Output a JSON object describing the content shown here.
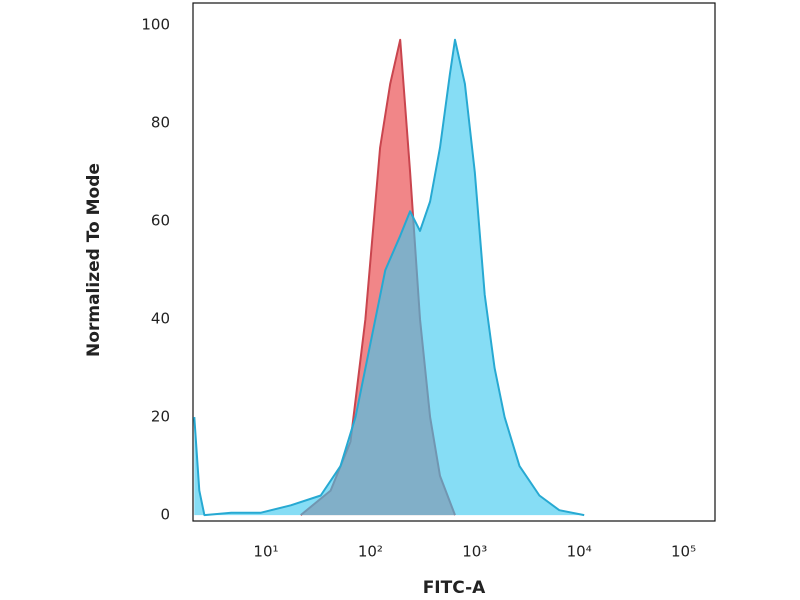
{
  "chart_data": {
    "type": "area",
    "x_label": "FITC-A",
    "y_label": "Normalized To Mode",
    "xscale": "log",
    "xlim": [
      2,
      200000
    ],
    "ylim": [
      -1.2,
      104.5
    ],
    "xticks": [
      {
        "value": 10,
        "label": "10¹"
      },
      {
        "value": 100,
        "label": "10²"
      },
      {
        "value": 1000,
        "label": "10³"
      },
      {
        "value": 10000,
        "label": "10⁴"
      },
      {
        "value": 100000,
        "label": "10⁵"
      }
    ],
    "yticks": [
      0,
      20,
      40,
      60,
      80,
      100
    ],
    "grid": false,
    "series": [
      {
        "color": "#f07f82",
        "stroke": "#c9454e",
        "x": [
          21.5,
          41.6,
          64.5,
          89.6,
          124,
          155,
          193,
          240,
          299,
          373,
          464,
          646
        ],
        "values": [
          0,
          5,
          15,
          40,
          75,
          88,
          97,
          70,
          40,
          20,
          8,
          0
        ]
      },
      {
        "color": "#3cc8ef",
        "stroke": "#27a9d2",
        "x": [
          2.06,
          2.3,
          2.57,
          4.64,
          8.96,
          17.3,
          33.4,
          51.8,
          72,
          100,
          139,
          193,
          240,
          299,
          373,
          464,
          578,
          646,
          804,
          1000,
          1245,
          1550,
          1931,
          2683,
          4159,
          6451,
          11170
        ],
        "values": [
          20,
          5,
          0,
          0.5,
          0.5,
          2,
          4,
          10,
          20,
          35,
          50,
          57,
          62,
          58,
          64,
          75,
          90,
          97,
          88,
          70,
          45,
          30,
          20,
          10,
          4,
          1,
          0
        ]
      }
    ]
  }
}
